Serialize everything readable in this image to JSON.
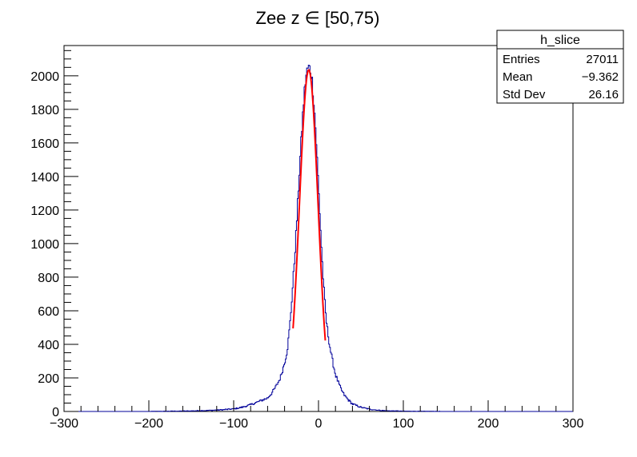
{
  "chart_data": {
    "type": "histogram",
    "title": "Zee z ∈ [50,75)",
    "xlabel": "",
    "ylabel": "",
    "xlim": [
      -300,
      300
    ],
    "ylim": [
      0,
      2180
    ],
    "x_ticks": [
      -300,
      -200,
      -100,
      0,
      100,
      200,
      300
    ],
    "y_ticks": [
      0,
      200,
      400,
      600,
      800,
      1000,
      1200,
      1400,
      1600,
      1800,
      2000
    ],
    "grid": false,
    "legend": "none",
    "bin_width": 1,
    "histogram_color": "#000099",
    "fit_color": "#ff0000",
    "histogram_profile": {
      "x": [
        -300,
        -200,
        -150,
        -120,
        -100,
        -90,
        -80,
        -70,
        -60,
        -55,
        -50,
        -45,
        -40,
        -37,
        -35,
        -33,
        -31,
        -29,
        -27,
        -25,
        -23,
        -21,
        -19,
        -17,
        -15,
        -13,
        -11,
        -9,
        -7,
        -5,
        -3,
        -1,
        1,
        3,
        5,
        7,
        9,
        11,
        13,
        15,
        17,
        20,
        25,
        30,
        35,
        40,
        50,
        60,
        70,
        80,
        100,
        120,
        150,
        200,
        300
      ],
      "y": [
        0,
        0,
        3,
        8,
        15,
        25,
        40,
        60,
        80,
        110,
        150,
        200,
        290,
        360,
        450,
        560,
        700,
        850,
        1010,
        1190,
        1380,
        1560,
        1730,
        1880,
        1990,
        2040,
        2050,
        2030,
        1950,
        1820,
        1650,
        1450,
        1240,
        1030,
        840,
        680,
        550,
        470,
        400,
        340,
        290,
        220,
        150,
        100,
        70,
        45,
        25,
        14,
        8,
        4,
        2,
        1,
        0,
        0,
        0
      ]
    },
    "fit": {
      "function": "gaus",
      "constant": 2035,
      "mean": -11.5,
      "sigma": 11.0,
      "range": [
        -30,
        8
      ]
    },
    "stats_box": {
      "name": "h_slice",
      "rows": [
        {
          "label": "Entries",
          "value": "27011"
        },
        {
          "label": "Mean",
          "value": "−9.362"
        },
        {
          "label": "Std Dev",
          "value": "26.16"
        }
      ]
    }
  }
}
